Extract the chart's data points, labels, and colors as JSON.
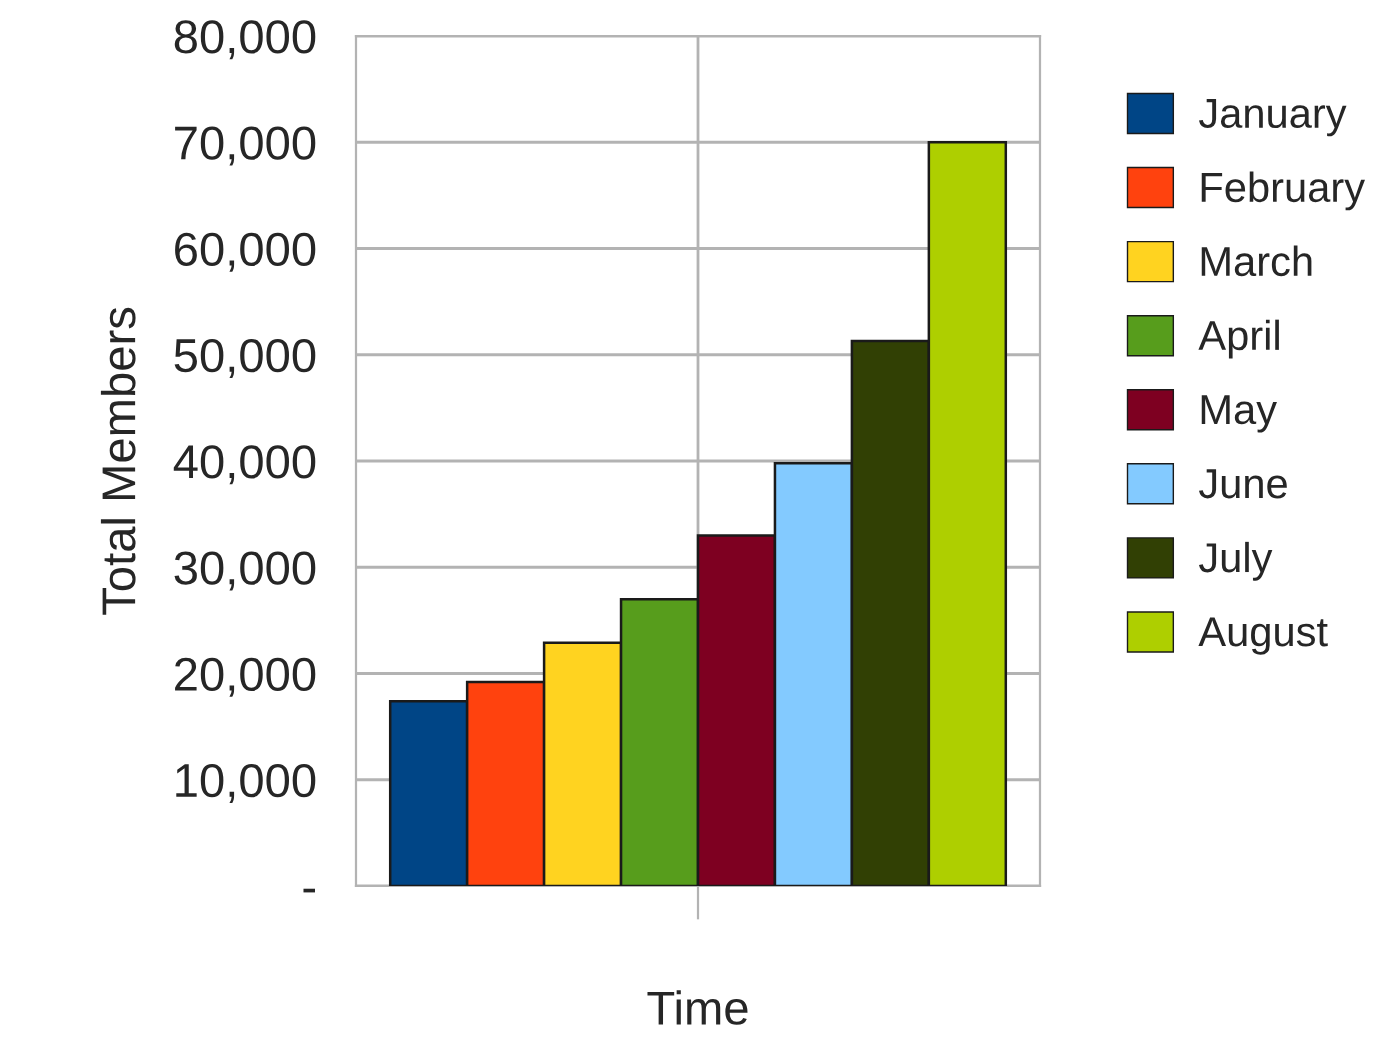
{
  "chart_data": {
    "type": "bar",
    "xlabel": "Time",
    "ylabel": "Total Members",
    "categories": [
      null
    ],
    "series": [
      {
        "name": "January",
        "color": "#004586",
        "values": [
          17400
        ]
      },
      {
        "name": "February",
        "color": "#ff420e",
        "values": [
          19200
        ]
      },
      {
        "name": "March",
        "color": "#ffd320",
        "values": [
          22900
        ]
      },
      {
        "name": "April",
        "color": "#579d1c",
        "values": [
          27000
        ]
      },
      {
        "name": "May",
        "color": "#7e0021",
        "values": [
          33000
        ]
      },
      {
        "name": "June",
        "color": "#83caff",
        "values": [
          39800
        ]
      },
      {
        "name": "July",
        "color": "#314004",
        "values": [
          51300
        ]
      },
      {
        "name": "August",
        "color": "#aecf00",
        "values": [
          70000
        ]
      }
    ],
    "ylim": [
      0,
      80000
    ],
    "yticks": [
      {
        "value": 0,
        "label": "-"
      },
      {
        "value": 10000,
        "label": "10,000"
      },
      {
        "value": 20000,
        "label": "20,000"
      },
      {
        "value": 30000,
        "label": "30,000"
      },
      {
        "value": 40000,
        "label": "40,000"
      },
      {
        "value": 50000,
        "label": "50,000"
      },
      {
        "value": 60000,
        "label": "60,000"
      },
      {
        "value": 70000,
        "label": "70,000"
      },
      {
        "value": 80000,
        "label": "80,000"
      }
    ],
    "grid": true,
    "legend": "right"
  }
}
